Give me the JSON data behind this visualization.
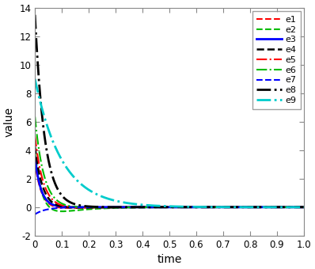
{
  "xlabel": "time",
  "ylabel": "value",
  "xlim": [
    0,
    1
  ],
  "ylim": [
    -2,
    14
  ],
  "yticks": [
    -2,
    0,
    2,
    4,
    6,
    8,
    10,
    12,
    14
  ],
  "xticks": [
    0,
    0.1,
    0.2,
    0.3,
    0.4,
    0.5,
    0.6,
    0.7,
    0.8,
    0.9,
    1.0
  ],
  "curves": [
    {
      "label": "e1",
      "color": "#ff0000",
      "linestyle": "--",
      "linewidth": 1.5,
      "A": 3.5,
      "k": 40,
      "B": -0.35,
      "kb": 12
    },
    {
      "label": "e2",
      "color": "#00bb00",
      "linestyle": "--",
      "linewidth": 1.5,
      "A": 5.0,
      "k": 38,
      "B": -1.1,
      "kb": 10
    },
    {
      "label": "e3",
      "color": "#0000ff",
      "linestyle": "-",
      "linewidth": 2.0,
      "A": 3.5,
      "k": 45,
      "B": 0.0,
      "kb": 0
    },
    {
      "label": "e4",
      "color": "#000000",
      "linestyle": "--",
      "linewidth": 1.8,
      "A": 4.5,
      "k": 35,
      "B": -0.25,
      "kb": 10
    },
    {
      "label": "e5",
      "color": "#ff0000",
      "linestyle": "-.",
      "linewidth": 1.5,
      "A": 5.2,
      "k": 32,
      "B": -0.2,
      "kb": 9
    },
    {
      "label": "e6",
      "color": "#00bb00",
      "linestyle": "-.",
      "linewidth": 1.5,
      "A": 6.5,
      "k": 30,
      "B": -0.15,
      "kb": 8
    },
    {
      "label": "e7",
      "color": "#0000ff",
      "linestyle": "--",
      "linewidth": 1.5,
      "A": -0.5,
      "k": 25,
      "B": 0.0,
      "kb": 0
    },
    {
      "label": "e8",
      "color": "#000000",
      "linestyle": "-.",
      "linewidth": 2.0,
      "A": 13.5,
      "k": 28,
      "B": 0.0,
      "kb": 0
    },
    {
      "label": "e9",
      "color": "#00cccc",
      "linestyle": "-.",
      "linewidth": 2.0,
      "A": 9.0,
      "k": 10,
      "B": 0.0,
      "kb": 0
    }
  ],
  "figsize": [
    3.98,
    3.4
  ],
  "dpi": 100,
  "axes_color": "#f0f0f0",
  "legend_fontsize": 8.0,
  "tick_fontsize": 8.5,
  "label_fontsize": 10.0
}
